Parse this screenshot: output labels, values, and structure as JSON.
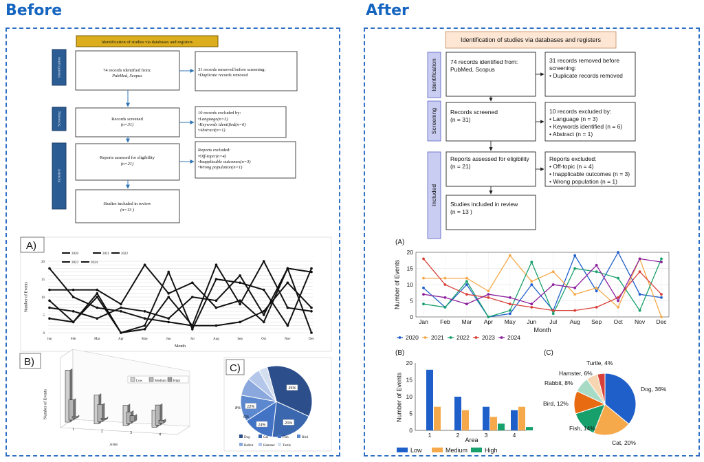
{
  "headings": {
    "before": "Before",
    "after": "After"
  },
  "colors": {
    "accent": "#1565c0",
    "panel_border": "#2f6fc4"
  },
  "before": {
    "flow": {
      "title": "Identification of studies via databases and registers",
      "stages": [
        "Identification",
        "Screening",
        "Included"
      ],
      "box_identified": [
        "74 records identified from:",
        "PubMed, Scopus"
      ],
      "box_removed": [
        "31 records removed before screening:",
        "•Duplicate records removed"
      ],
      "box_screened": [
        "Records screened",
        "(n=31)"
      ],
      "box_excluded": [
        "10 records excluded by:",
        "•Language(n=3)",
        "•Keywords identified(n=6)",
        "•Abstract(n=1)"
      ],
      "box_assessed": [
        "Reports assessed for eligibility",
        "(n=21)"
      ],
      "box_reports_excluded": [
        "Reports excluded:",
        "•Off-topic(n=4)",
        "•Inapplicable outcomes(n=3)",
        "•Wrong population(n=1)"
      ],
      "box_included": [
        "Studies included in review",
        "(n=13 )"
      ]
    },
    "panel_a": {
      "label": "A)",
      "legend": [
        "2020",
        "2021",
        "2022",
        "2023",
        "2024"
      ],
      "xlabel": "Month",
      "ylabel": "Number of Events"
    },
    "panel_b": {
      "label": "B)",
      "legend": [
        "Low",
        "Medium",
        "High"
      ],
      "xlabel": "Area",
      "ylabel": "Number of Events"
    },
    "panel_c": {
      "label": "C)",
      "legend": [
        "Dog",
        "Cat",
        "Fish",
        "Bird",
        "Rabbit",
        "Hamster",
        "Turtle"
      ]
    }
  },
  "after": {
    "flow": {
      "title": "Identification of studies via databases and registers",
      "stages": [
        "Identification",
        "Screening",
        "Included"
      ],
      "box_identified": [
        "74 records identified from:",
        "PubMed, Scopus"
      ],
      "box_removed": [
        "31 records removed before",
        "screening:",
        "•  Duplicate records removed"
      ],
      "box_screened": [
        "Records screened",
        "(n = 31)"
      ],
      "box_excluded": [
        "10 records excluded by:",
        "•  Language (n = 3)",
        "•  Keywords identified (n = 6)",
        "•  Abstract (n = 1)"
      ],
      "box_assessed": [
        "Reports assessed for eligibility",
        "(n = 21)"
      ],
      "box_reports_excluded": [
        "Reports excluded:",
        "•  Off-topic (n = 4)",
        "•  Inapplicable outcomes (n = 3)",
        "•  Wrong population (n = 1)"
      ],
      "box_included": [
        "Studies included in review",
        "(n = 13 )"
      ]
    },
    "panel_a_label": "(A)",
    "panel_b_label": "(B)",
    "panel_c_label": "(C)"
  },
  "chart_data": [
    {
      "type": "line",
      "xlabel": "Month",
      "ylabel": "Number of Events",
      "categories": [
        "Jan",
        "Feb",
        "Mar",
        "Apr",
        "May",
        "Jun",
        "Jul",
        "Aug",
        "Sep",
        "Oct",
        "Nov",
        "Dec"
      ],
      "ylim": [
        0,
        20
      ],
      "yticks": [
        0,
        5,
        10,
        15,
        20
      ],
      "grid": true,
      "legend_position": "bottom",
      "series": [
        {
          "name": "2020",
          "color": "#1f5fc9",
          "values": [
            9,
            3,
            10,
            0,
            1,
            10,
            2,
            19,
            8,
            20,
            7,
            6
          ]
        },
        {
          "name": "2021",
          "color": "#f5a94a",
          "values": [
            12,
            12,
            12,
            8,
            19,
            11,
            14,
            7,
            9,
            3,
            18,
            0
          ]
        },
        {
          "name": "2022",
          "color": "#17a06c",
          "values": [
            4,
            3,
            11,
            0,
            2,
            17,
            1,
            15,
            14,
            12,
            2,
            18
          ]
        },
        {
          "name": "2023",
          "color": "#d8413a",
          "values": [
            18,
            10,
            7,
            6,
            4,
            3,
            2,
            2,
            3,
            6,
            14,
            7
          ]
        },
        {
          "name": "2024",
          "color": "#8b1f9c",
          "values": [
            7,
            6,
            4,
            7,
            6,
            4,
            10,
            9,
            16,
            5,
            18,
            17
          ]
        }
      ]
    },
    {
      "type": "bar",
      "xlabel": "Area",
      "ylabel": "Number of Events",
      "categories": [
        "1",
        "2",
        "3",
        "4"
      ],
      "ylim": [
        0,
        20
      ],
      "yticks": [
        0,
        5,
        10,
        15,
        20
      ],
      "legend_position": "bottom",
      "series": [
        {
          "name": "Low",
          "color": "#1f5fc9",
          "values": [
            18,
            10,
            7,
            6
          ]
        },
        {
          "name": "Medium",
          "color": "#f5a94a",
          "values": [
            7,
            6,
            4,
            7
          ]
        },
        {
          "name": "High",
          "color": "#17a06c",
          "values": [
            0,
            0,
            2,
            1
          ]
        }
      ]
    },
    {
      "type": "pie",
      "categories": [
        "Dog",
        "Cat",
        "Fish",
        "Bird",
        "Rabbit",
        "Hamster",
        "Turtle"
      ],
      "values": [
        36,
        20,
        14,
        12,
        8,
        6,
        4
      ],
      "labels": [
        "Dog, 36%",
        "Cat, 20%",
        "Fish, 14%",
        "Bird, 12%",
        "Rabbit, 8%",
        "Hamster, 6%",
        "Turtle, 4%"
      ],
      "colors": [
        "#1f5fc9",
        "#f5a94a",
        "#17a06c",
        "#e86b12",
        "#a8dbc5",
        "#f6d5b0",
        "#d8413a"
      ]
    }
  ]
}
